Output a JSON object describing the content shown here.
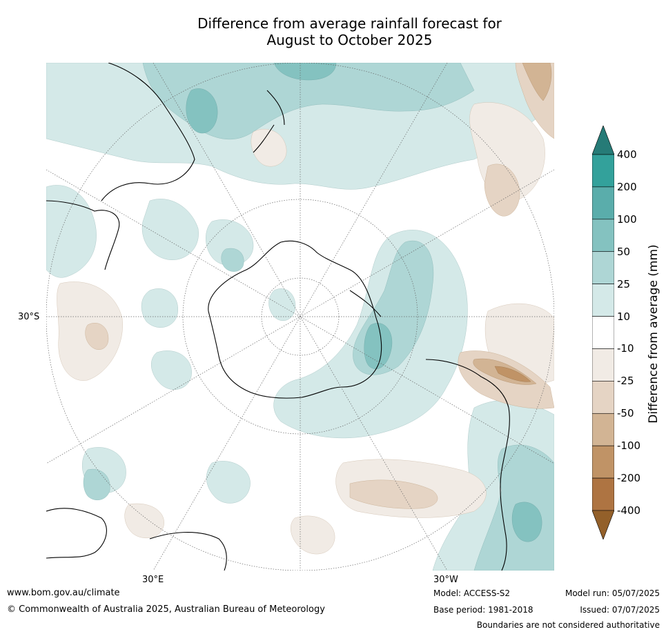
{
  "title": {
    "line1": "Difference from average rainfall forecast for",
    "line2": "August to October 2025"
  },
  "map": {
    "projection": "south-polar-stereographic",
    "lat_labels": {
      "left": "30°S",
      "bottom_left": "30°E",
      "bottom_right": "30°W"
    }
  },
  "colorbar": {
    "label": "Difference from average (mm)",
    "ticks": [
      "400",
      "200",
      "100",
      "50",
      "25",
      "10",
      "-10",
      "-25",
      "-50",
      "-100",
      "-200",
      "-400"
    ],
    "colors": {
      "over": "#267b77",
      "bins": [
        "#33a19b",
        "#5aadab",
        "#84c2c0",
        "#aed6d5",
        "#d4e9e8",
        "#ffffff",
        "#f1ebe5",
        "#e5d4c4",
        "#d2b494",
        "#c09366",
        "#ae7442"
      ],
      "under": "#93602a"
    }
  },
  "footer": {
    "url": "www.bom.gov.au/climate",
    "copyright": "© Commonwealth of Australia 2025, Australian Bureau of Meteorology",
    "model": "Model: ACCESS-S2",
    "base_period": "Base period: 1981-2018",
    "model_run": "Model run: 05/07/2025",
    "issued": "Issued: 07/07/2025",
    "disclaimer": "Boundaries are not considered authoritative"
  }
}
